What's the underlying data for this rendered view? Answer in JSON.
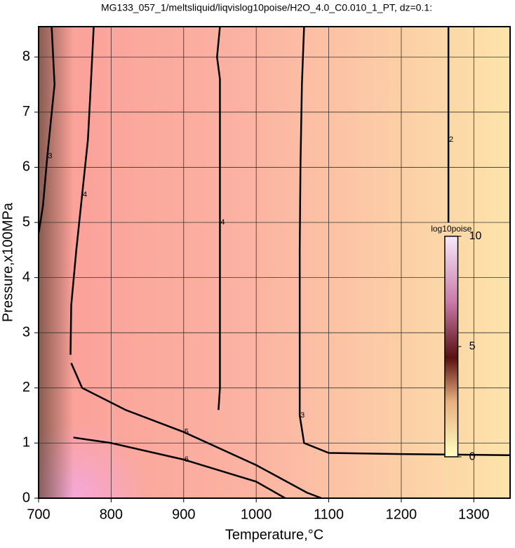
{
  "chart_data": {
    "type": "contour",
    "title": "MG133_057_1/meltsliquid/liqvislog10poise/H2O_4.0_C0.010_1_PT, dz=0.1:",
    "x_label": "Temperature,°C",
    "y_label": "Pressure,x100MPa",
    "xlim": [
      700,
      1350
    ],
    "ylim": [
      0,
      8.55
    ],
    "xticks": [
      700,
      800,
      900,
      1000,
      1100,
      1200,
      1300
    ],
    "yticks": [
      0,
      1,
      2,
      3,
      4,
      5,
      6,
      7,
      8
    ],
    "grid": true,
    "contours": [
      {
        "level": 2,
        "x": [
          1265,
          1265,
          1265
        ],
        "y": [
          8.55,
          6.5,
          5.0
        ]
      },
      {
        "level": 3,
        "x": [
          1066,
          1063,
          1061,
          1060,
          1060,
          1066,
          1100,
          1200,
          1350
        ],
        "y": [
          8.55,
          7.5,
          6.0,
          4.5,
          1.5,
          1.0,
          0.82,
          0.8,
          0.78
        ]
      },
      {
        "level": 4,
        "x": [
          950,
          946,
          950,
          950,
          950,
          948
        ],
        "y": [
          8.55,
          8.0,
          7.6,
          5.0,
          2.0,
          1.6
        ]
      },
      {
        "level": 4,
        "x": [
          776,
          772,
          768,
          760,
          752,
          745,
          744
        ],
        "y": [
          8.55,
          7.5,
          6.5,
          5.5,
          4.5,
          3.5,
          2.6
        ]
      },
      {
        "level": 5,
        "x": [
          745,
          760,
          820,
          900,
          1000,
          1070,
          1090
        ],
        "y": [
          2.45,
          2.0,
          1.6,
          1.2,
          0.6,
          0.1,
          0
        ]
      },
      {
        "level": 6,
        "x": [
          748,
          800,
          900,
          1000,
          1040
        ],
        "y": [
          1.1,
          1.0,
          0.7,
          0.3,
          0
        ]
      },
      {
        "level": 3,
        "x": [
          718,
          722,
          712,
          706,
          700
        ],
        "y": [
          8.55,
          7.5,
          6.2,
          5.3,
          4.8
        ]
      }
    ],
    "colorbar": {
      "label": "log10poise",
      "lim": [
        0,
        10
      ],
      "ticks": [
        0,
        5,
        10
      ],
      "p_range": [
        0.75,
        4.75
      ],
      "t_range": [
        1260,
        1278
      ]
    }
  }
}
